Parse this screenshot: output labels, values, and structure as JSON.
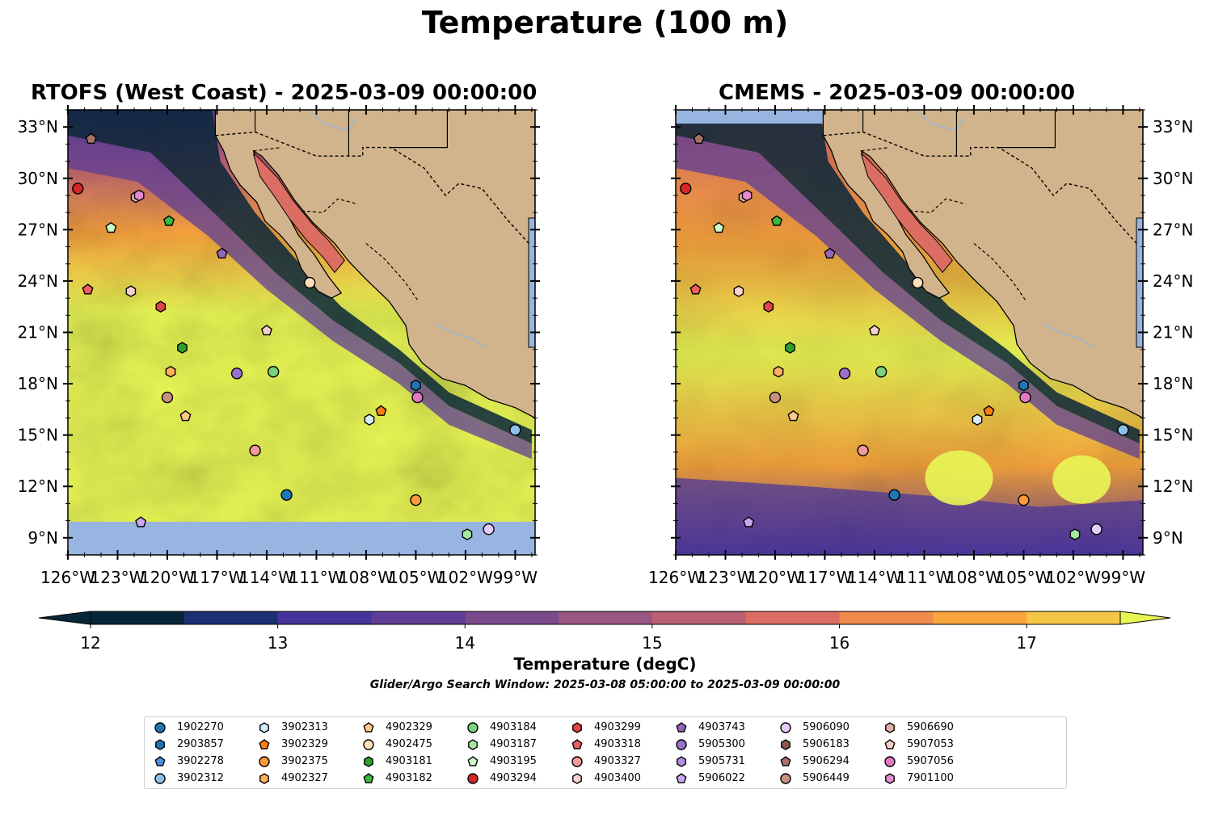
{
  "figure": {
    "suptitle": "Temperature (100 m)",
    "panels": [
      {
        "title": "RTOFS (West Coast) - 2025-03-09 00:00:00"
      },
      {
        "title": "CMEMS - 2025-03-09 00:00:00"
      }
    ],
    "lat_labels": [
      "33°N",
      "30°N",
      "27°N",
      "24°N",
      "21°N",
      "18°N",
      "15°N",
      "12°N",
      "9°N"
    ],
    "lon_labels": [
      "126°W",
      "123°W",
      "120°W",
      "117°W",
      "114°W",
      "111°W",
      "108°W",
      "105°W",
      "102°W",
      "99°W"
    ],
    "colorbar": {
      "label": "Temperature (degC)",
      "ticks": [
        "12",
        "13",
        "14",
        "15",
        "16",
        "17"
      ],
      "colors": [
        "#08263a",
        "#1b3073",
        "#45339c",
        "#5e3d96",
        "#7a4a8d",
        "#9a5781",
        "#bb6074",
        "#db6d63",
        "#f08a4a",
        "#f9a53d",
        "#f6c747",
        "#e8f654"
      ]
    },
    "search_window": "Glider/Argo Search Window: 2025-03-08 05:00:00 to 2025-03-09 00:00:00",
    "colors": {
      "land": "#d2b48c",
      "water_fill": "#98b4e0",
      "border": "#000000"
    }
  },
  "floats": [
    {
      "id": "1902270",
      "marker": "circle",
      "color": "#1f77b4",
      "lon": -112.8,
      "lat": 11.5
    },
    {
      "id": "2903857",
      "marker": "hexagon",
      "color": "#1f77b4",
      "lon": -105.0,
      "lat": 17.9
    },
    {
      "id": "3902278",
      "marker": "pentagon",
      "color": "#4a90d9",
      "lon": null,
      "lat": null
    },
    {
      "id": "3902312",
      "marker": "circle",
      "color": "#8ec1ea",
      "lon": -99.0,
      "lat": 15.3
    },
    {
      "id": "3902313",
      "marker": "hexagon",
      "color": "#d7ecf8",
      "lon": -107.8,
      "lat": 15.9
    },
    {
      "id": "3902329",
      "marker": "pentagon",
      "color": "#ff7f0e",
      "lon": -107.1,
      "lat": 16.4
    },
    {
      "id": "3902375",
      "marker": "circle",
      "color": "#fd9a3a",
      "lon": -105.0,
      "lat": 11.2
    },
    {
      "id": "4902327",
      "marker": "hexagon",
      "color": "#ffb061",
      "lon": -119.8,
      "lat": 18.7
    },
    {
      "id": "4902329",
      "marker": "pentagon",
      "color": "#ffc98b",
      "lon": -118.9,
      "lat": 16.1
    },
    {
      "id": "4902475",
      "marker": "circle",
      "color": "#ffe0bc",
      "lon": -111.4,
      "lat": 23.9
    },
    {
      "id": "4903181",
      "marker": "hexagon",
      "color": "#2ca02c",
      "lon": -119.1,
      "lat": 20.1
    },
    {
      "id": "4903182",
      "marker": "pentagon",
      "color": "#3cb83c",
      "lon": -119.9,
      "lat": 27.5
    },
    {
      "id": "4903184",
      "marker": "circle",
      "color": "#7ad27a",
      "lon": -113.6,
      "lat": 18.7
    },
    {
      "id": "4903187",
      "marker": "hexagon",
      "color": "#a6e8a0",
      "lon": -101.9,
      "lat": 9.2
    },
    {
      "id": "4903195",
      "marker": "pentagon",
      "color": "#cdfcc8",
      "lon": -123.4,
      "lat": 27.1
    },
    {
      "id": "4903294",
      "marker": "circle",
      "color": "#d62728",
      "lon": -125.4,
      "lat": 29.4
    },
    {
      "id": "4903299",
      "marker": "hexagon",
      "color": "#e04444",
      "lon": -120.4,
      "lat": 22.5
    },
    {
      "id": "4903318",
      "marker": "pentagon",
      "color": "#ee5f62",
      "lon": -124.8,
      "lat": 23.5
    },
    {
      "id": "4903327",
      "marker": "circle",
      "color": "#f19a9a",
      "lon": -114.7,
      "lat": 14.1
    },
    {
      "id": "4903400",
      "marker": "hexagon",
      "color": "#fbd0d0",
      "lon": -122.2,
      "lat": 23.4
    },
    {
      "id": "4903743",
      "marker": "pentagon",
      "color": "#9467bd",
      "lon": -116.7,
      "lat": 25.6
    },
    {
      "id": "5905300",
      "marker": "circle",
      "color": "#9a6fd0",
      "lon": -115.8,
      "lat": 18.6
    },
    {
      "id": "5905731",
      "marker": "hexagon",
      "color": "#b48fe0",
      "lon": null,
      "lat": null
    },
    {
      "id": "5906022",
      "marker": "pentagon",
      "color": "#c8a8ef",
      "lon": -121.6,
      "lat": 9.9
    },
    {
      "id": "5906090",
      "marker": "circle",
      "color": "#e4ccff",
      "lon": -100.6,
      "lat": 9.5
    },
    {
      "id": "5906183",
      "marker": "hexagon",
      "color": "#8c564b",
      "lon": null,
      "lat": null
    },
    {
      "id": "5906294",
      "marker": "pentagon",
      "color": "#a8706a",
      "lon": -124.6,
      "lat": 32.3
    },
    {
      "id": "5906449",
      "marker": "circle",
      "color": "#c89080",
      "lon": -120.0,
      "lat": 17.2
    },
    {
      "id": "5906690",
      "marker": "hexagon",
      "color": "#e0b0a4",
      "lon": -121.9,
      "lat": 28.9
    },
    {
      "id": "5907053",
      "marker": "pentagon",
      "color": "#f5d0c4",
      "lon": -114.0,
      "lat": 21.1
    },
    {
      "id": "5907056",
      "marker": "circle",
      "color": "#e377c2",
      "lon": -104.9,
      "lat": 17.2
    },
    {
      "id": "7901100",
      "marker": "hexagon",
      "color": "#e78ad0",
      "lon": -121.7,
      "lat": 29.0
    }
  ]
}
